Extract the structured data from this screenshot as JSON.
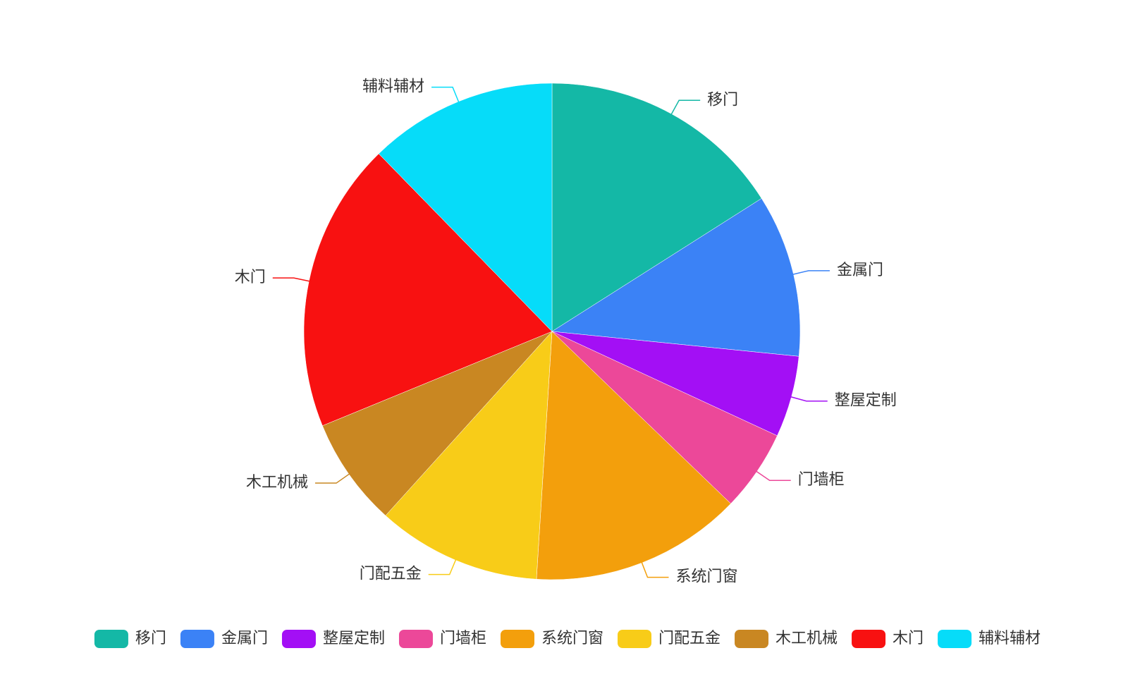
{
  "chart_data": {
    "type": "pie",
    "categories": [
      "移门",
      "金属门",
      "整屋定制",
      "门墙柜",
      "系统门窗",
      "门配五金",
      "木工机械",
      "木门",
      "辅料辅材"
    ],
    "values": [
      16,
      10.6,
      5.3,
      5.3,
      13.8,
      10.7,
      7.1,
      18.9,
      12.3
    ],
    "colors": [
      "#14b8a6",
      "#3b82f6",
      "#a30ff5",
      "#ec4899",
      "#f39f0c",
      "#f8cc18",
      "#c98722",
      "#f81111",
      "#06dcf9"
    ],
    "legend": "bottom"
  }
}
